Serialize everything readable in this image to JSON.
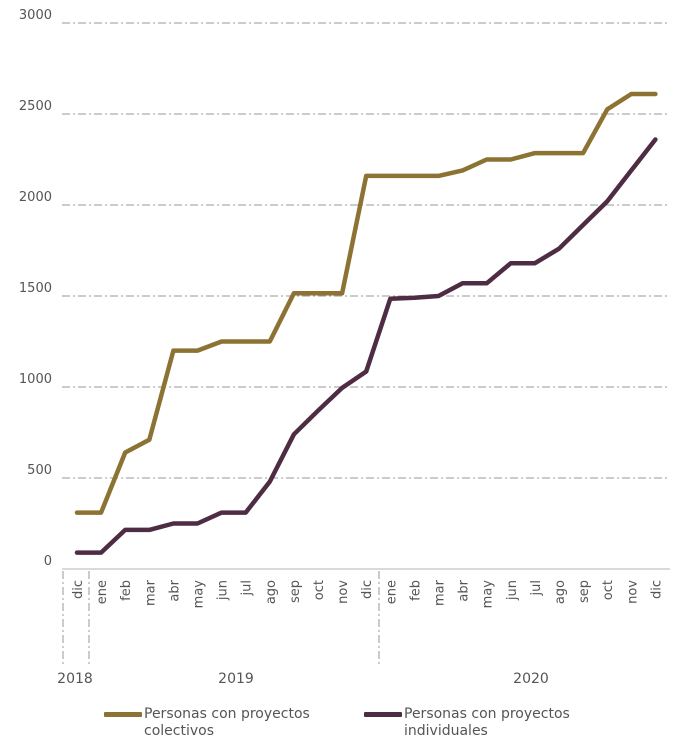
{
  "chart_data": {
    "type": "line",
    "y_ticks": [
      "0",
      "500",
      "1000",
      "1500",
      "2000",
      "2500",
      "3000"
    ],
    "ylim": [
      0,
      3000
    ],
    "grid": true,
    "legend_position": "bottom",
    "x_months": [
      "dic",
      "ene",
      "feb",
      "mar",
      "abr",
      "may",
      "jun",
      "jul",
      "ago",
      "sep",
      "oct",
      "nov",
      "dic",
      "ene",
      "feb",
      "mar",
      "abr",
      "may",
      "jun",
      "jul",
      "ago",
      "sep",
      "oct",
      "nov",
      "dic"
    ],
    "x_years": [
      "2018",
      "2019",
      "2020"
    ],
    "series": [
      {
        "name": "Personas con proyectos colectivos",
        "color": "#8c7333",
        "values": [
          310,
          310,
          640,
          710,
          1200,
          1200,
          1250,
          1250,
          1250,
          1515,
          1515,
          1515,
          2160,
          2160,
          2160,
          2160,
          2190,
          2250,
          2250,
          2285,
          2285,
          2285,
          2525,
          2610,
          2610
        ]
      },
      {
        "name": "Personas con proyectos individuales",
        "color": "#4e2c44",
        "values": [
          90,
          90,
          215,
          215,
          250,
          250,
          310,
          310,
          480,
          740,
          870,
          995,
          1085,
          1485,
          1490,
          1500,
          1570,
          1570,
          1680,
          1680,
          1760,
          1890,
          2020,
          2190,
          2360
        ]
      }
    ]
  }
}
